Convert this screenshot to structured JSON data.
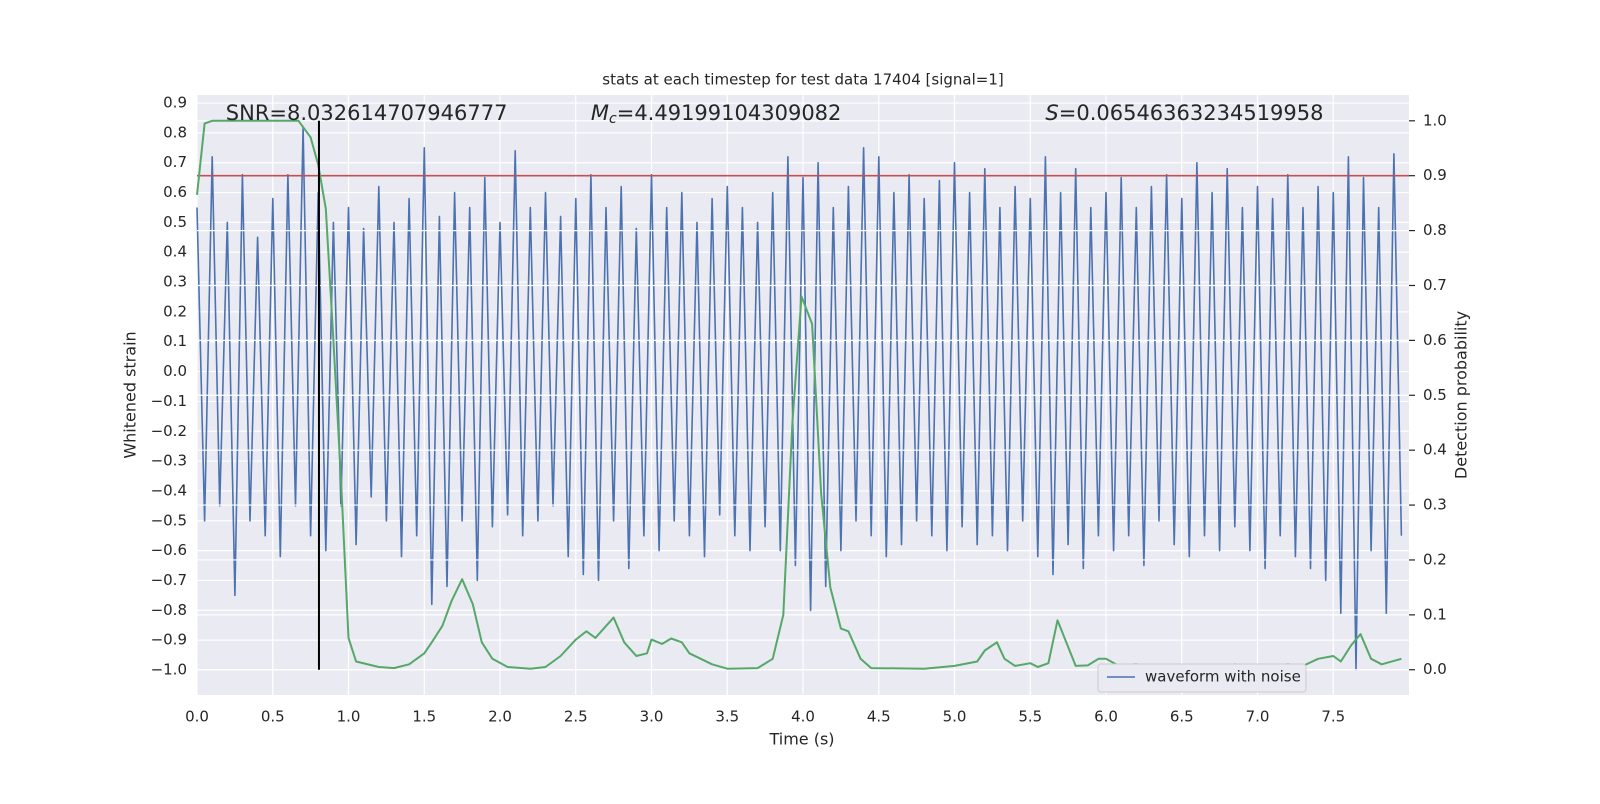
{
  "chart_data": {
    "type": "line",
    "title": "stats at each timestep for test data 17404 [signal=1]",
    "xlabel": "Time (s)",
    "ylabel": "Whitened strain",
    "y2label": "Detection probability",
    "annotations": [
      {
        "text": "SNR=8.032614707946777",
        "x": 0.19
      },
      {
        "symbol": "M",
        "sub": "c",
        "text": "=4.49199104309082",
        "x": 2.6
      },
      {
        "symbol": "S",
        "text": "=0.06546363234519958",
        "x": 5.6
      }
    ],
    "xlim": [
      0,
      8.0
    ],
    "xticks": [
      {
        "value": 0,
        "label": "0.0"
      },
      0.5,
      {
        "value": 1,
        "label": "1.0"
      },
      1.5,
      {
        "value": 2,
        "label": "2.0"
      },
      2.5,
      {
        "value": 3,
        "label": "3.0"
      },
      3.5,
      {
        "value": 4,
        "label": "4.0"
      },
      4.5,
      {
        "value": 5,
        "label": "5.0"
      },
      5.5,
      {
        "value": 6,
        "label": "6.0"
      },
      6.5,
      {
        "value": 7,
        "label": "7.0"
      },
      7.5
    ],
    "ylim": [
      -1.084,
      0.927
    ],
    "yticks": [
      {
        "value": -1,
        "label": "−1.0"
      },
      {
        "value": -0.9,
        "label": "−0.9"
      },
      {
        "value": -0.8,
        "label": "−0.8"
      },
      {
        "value": -0.7,
        "label": "−0.7"
      },
      {
        "value": -0.6,
        "label": "−0.6"
      },
      {
        "value": -0.5,
        "label": "−0.5"
      },
      {
        "value": -0.4,
        "label": "−0.4"
      },
      {
        "value": -0.3,
        "label": "−0.3"
      },
      {
        "value": -0.2,
        "label": "−0.2"
      },
      {
        "value": -0.1,
        "label": "−0.1"
      },
      {
        "value": 0,
        "label": "0.0"
      },
      0.1,
      0.2,
      0.3,
      0.4,
      0.5,
      0.6,
      0.7,
      0.8,
      0.9
    ],
    "y2lim": [
      -0.046,
      1.047
    ],
    "y2ticks": [
      {
        "value": 0,
        "label": "0.0"
      },
      0.1,
      0.2,
      0.3,
      0.4,
      0.5,
      0.6,
      0.7,
      0.8,
      0.9,
      {
        "value": 1,
        "label": "1.0"
      }
    ],
    "grid": true,
    "legend": "lower right",
    "series": [
      {
        "name": "waveform with noise",
        "color": "#4c72b0",
        "x": [
          0,
          0.05,
          0.1,
          0.15,
          0.2,
          0.25,
          0.3,
          0.35,
          0.4,
          0.45,
          0.5,
          0.55,
          0.6,
          0.65,
          0.7,
          0.75,
          0.8,
          0.85,
          0.9,
          0.95,
          1,
          1.05,
          1.1,
          1.15,
          1.2,
          1.25,
          1.3,
          1.35,
          1.4,
          1.45,
          1.5,
          1.55,
          1.6,
          1.65,
          1.7,
          1.75,
          1.8,
          1.85,
          1.9,
          1.95,
          2,
          2.05,
          2.1,
          2.15,
          2.2,
          2.25,
          2.3,
          2.35,
          2.4,
          2.45,
          2.5,
          2.55,
          2.6,
          2.65,
          2.7,
          2.75,
          2.8,
          2.85,
          2.9,
          2.95,
          3,
          3.05,
          3.1,
          3.15,
          3.2,
          3.25,
          3.3,
          3.35,
          3.4,
          3.45,
          3.5,
          3.55,
          3.6,
          3.65,
          3.7,
          3.75,
          3.8,
          3.85,
          3.9,
          3.95,
          4,
          4.05,
          4.1,
          4.15,
          4.2,
          4.25,
          4.3,
          4.35,
          4.4,
          4.45,
          4.5,
          4.55,
          4.6,
          4.65,
          4.7,
          4.75,
          4.8,
          4.85,
          4.9,
          4.95,
          5,
          5.05,
          5.1,
          5.15,
          5.2,
          5.25,
          5.3,
          5.35,
          5.4,
          5.45,
          5.5,
          5.55,
          5.6,
          5.65,
          5.7,
          5.75,
          5.8,
          5.85,
          5.9,
          5.95,
          6,
          6.05,
          6.1,
          6.15,
          6.2,
          6.25,
          6.3,
          6.35,
          6.4,
          6.45,
          6.5,
          6.55,
          6.6,
          6.65,
          6.7,
          6.75,
          6.8,
          6.85,
          6.9,
          6.95,
          7,
          7.05,
          7.1,
          7.15,
          7.2,
          7.25,
          7.3,
          7.35,
          7.4,
          7.45,
          7.5,
          7.55,
          7.6,
          7.65,
          7.7,
          7.75,
          7.8,
          7.85,
          7.9,
          7.95
        ],
        "values": [
          0.55,
          -0.5,
          0.72,
          -0.45,
          0.5,
          -0.75,
          0.66,
          -0.5,
          0.45,
          -0.55,
          0.58,
          -0.62,
          0.66,
          -0.45,
          0.82,
          -0.55,
          0.6,
          -0.6,
          0.5,
          -0.45,
          0.55,
          -0.58,
          0.48,
          -0.42,
          0.62,
          -0.5,
          0.5,
          -0.62,
          0.58,
          -0.55,
          0.75,
          -0.78,
          0.52,
          -0.72,
          0.6,
          -0.5,
          0.55,
          -0.7,
          0.65,
          -0.52,
          0.5,
          -0.48,
          0.74,
          -0.55,
          0.55,
          -0.5,
          0.6,
          -0.45,
          0.52,
          -0.62,
          0.58,
          -0.68,
          0.66,
          -0.7,
          0.55,
          -0.5,
          0.62,
          -0.66,
          0.48,
          -0.55,
          0.66,
          -0.6,
          0.55,
          -0.5,
          0.6,
          -0.55,
          0.5,
          -0.62,
          0.58,
          -0.48,
          0.62,
          -0.55,
          0.55,
          -0.6,
          0.5,
          -0.52,
          0.6,
          -0.6,
          0.72,
          -0.65,
          0.65,
          -0.8,
          0.7,
          -0.72,
          0.55,
          -0.6,
          0.62,
          -0.5,
          0.75,
          -0.55,
          0.72,
          -0.62,
          0.6,
          -0.58,
          0.66,
          -0.5,
          0.58,
          -0.55,
          0.64,
          -0.6,
          0.7,
          -0.52,
          0.6,
          -0.58,
          0.68,
          -0.55,
          0.55,
          -0.6,
          0.62,
          -0.5,
          0.58,
          -0.62,
          0.72,
          -0.68,
          0.6,
          -0.58,
          0.68,
          -0.66,
          0.55,
          -0.55,
          0.6,
          -0.6,
          0.65,
          -0.55,
          0.55,
          -0.65,
          0.62,
          -0.5,
          0.66,
          -0.58,
          0.58,
          -0.62,
          0.7,
          -0.55,
          0.6,
          -0.6,
          0.68,
          -0.52,
          0.55,
          -0.6,
          0.62,
          -0.66,
          0.58,
          -0.55,
          0.66,
          -0.62,
          0.55,
          -0.66,
          0.62,
          -0.7,
          0.6,
          -0.81,
          0.72,
          -1.0,
          0.65,
          -0.6,
          0.55,
          -0.81,
          0.73,
          -0.55
        ]
      },
      {
        "color": "#55a868",
        "axis": "y2",
        "x": [
          0,
          0.05,
          0.1,
          0.67,
          0.75,
          0.8,
          0.85,
          0.9,
          0.95,
          1,
          1.05,
          1.2,
          1.3,
          1.4,
          1.5,
          1.55,
          1.62,
          1.68,
          1.75,
          1.82,
          1.88,
          1.95,
          2.05,
          2.2,
          2.3,
          2.4,
          2.5,
          2.57,
          2.63,
          2.75,
          2.82,
          2.9,
          2.97,
          3,
          3.07,
          3.13,
          3.2,
          3.25,
          3.4,
          3.5,
          3.7,
          3.8,
          3.87,
          3.93,
          3.99,
          4.06,
          4.12,
          4.18,
          4.25,
          4.3,
          4.38,
          4.45,
          4.8,
          5,
          5.15,
          5.2,
          5.28,
          5.33,
          5.4,
          5.5,
          5.55,
          5.62,
          5.68,
          5.8,
          5.88,
          5.95,
          6,
          6.08,
          6.2,
          6.3,
          6.5,
          6.7,
          6.85,
          7,
          7.2,
          7.3,
          7.4,
          7.5,
          7.55,
          7.62,
          7.68,
          7.75,
          7.82,
          7.95
        ],
        "values": [
          0.865,
          0.995,
          1.0,
          1.0,
          0.97,
          0.92,
          0.84,
          0.6,
          0.35,
          0.058,
          0.015,
          0.005,
          0.003,
          0.01,
          0.03,
          0.05,
          0.08,
          0.125,
          0.165,
          0.12,
          0.05,
          0.02,
          0.005,
          0.002,
          0.005,
          0.025,
          0.055,
          0.07,
          0.058,
          0.095,
          0.05,
          0.025,
          0.03,
          0.055,
          0.047,
          0.057,
          0.05,
          0.03,
          0.01,
          0.002,
          0.003,
          0.02,
          0.1,
          0.45,
          0.68,
          0.63,
          0.32,
          0.15,
          0.075,
          0.07,
          0.02,
          0.003,
          0.002,
          0.007,
          0.015,
          0.035,
          0.05,
          0.02,
          0.007,
          0.012,
          0.005,
          0.012,
          0.09,
          0.007,
          0.008,
          0.02,
          0.02,
          0.008,
          0.01,
          0.007,
          0.003,
          0.003,
          0.01,
          0.004,
          0.01,
          0.007,
          0.02,
          0.025,
          0.015,
          0.045,
          0.065,
          0.02,
          0.01,
          0.02
        ]
      }
    ],
    "hline": {
      "value": 0.9,
      "axis": "y2",
      "color": "#c44e52"
    },
    "vline": {
      "value": 0.805,
      "from": 0,
      "to": 1,
      "axis": "y2",
      "color": "#000000"
    }
  }
}
